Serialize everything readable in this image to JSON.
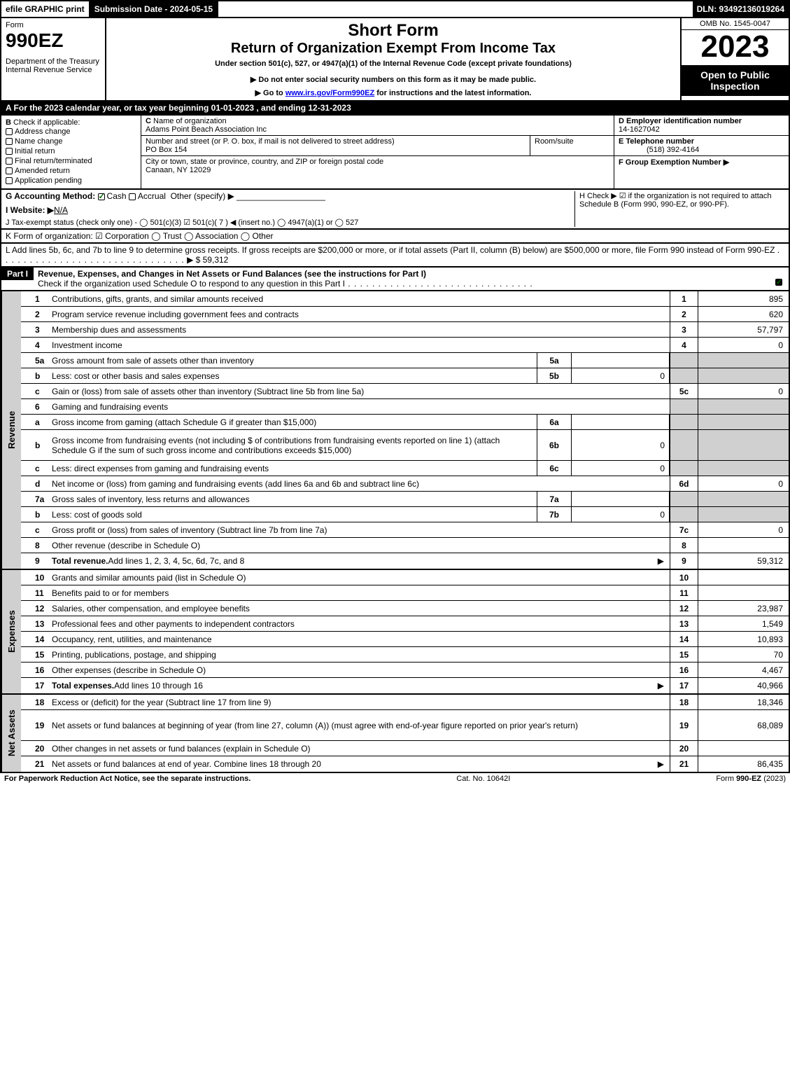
{
  "topbar": {
    "efile": "efile GRAPHIC print",
    "subdate_label": "Submission Date - 2024-05-15",
    "dln": "DLN: 93492136019264"
  },
  "header": {
    "form_label": "Form",
    "form_no": "990EZ",
    "dept1": "Department of the Treasury",
    "dept2": "Internal Revenue Service",
    "short": "Short Form",
    "title": "Return of Organization Exempt From Income Tax",
    "subtitle": "Under section 501(c), 527, or 4947(a)(1) of the Internal Revenue Code (except private foundations)",
    "warn1": "▶ Do not enter social security numbers on this form as it may be made public.",
    "warn2": "▶ Go to ",
    "warn2_link": "www.irs.gov/Form990EZ",
    "warn2_tail": " for instructions and the latest information.",
    "omb": "OMB No. 1545-0047",
    "year": "2023",
    "open": "Open to Public Inspection"
  },
  "lineA": "A  For the 2023 calendar year, or tax year beginning 01-01-2023 , and ending 12-31-2023",
  "sectionB": {
    "label": "B",
    "check_label": "Check if applicable:",
    "opts": [
      "Address change",
      "Name change",
      "Initial return",
      "Final return/terminated",
      "Amended return",
      "Application pending"
    ],
    "c_label": "C",
    "c_name_label": "Name of organization",
    "c_name": "Adams Point Beach Association Inc",
    "c_street_label": "Number and street (or P. O. box, if mail is not delivered to street address)",
    "c_room_label": "Room/suite",
    "c_street": "PO Box 154",
    "c_city_label": "City or town, state or province, country, and ZIP or foreign postal code",
    "c_city": "Canaan, NY  12029",
    "d_label": "D Employer identification number",
    "d_val": "14-1627042",
    "e_label": "E Telephone number",
    "e_val": "(518) 392-4164",
    "f_label": "F Group Exemption Number   ▶"
  },
  "lineG": {
    "label": "G Accounting Method:",
    "cash": "Cash",
    "accrual": "Accrual",
    "other": "Other (specify) ▶"
  },
  "lineH": "H   Check ▶ ☑ if the organization is not required to attach Schedule B (Form 990, 990-EZ, or 990-PF).",
  "lineI": {
    "label": "I Website: ▶",
    "val": "N/A"
  },
  "lineJ": "J Tax-exempt status (check only one) - ◯ 501(c)(3) ☑ 501(c)( 7 ) ◀ (insert no.) ◯ 4947(a)(1) or ◯ 527",
  "lineK": "K Form of organization:   ☑ Corporation  ◯ Trust  ◯ Association  ◯ Other",
  "lineL": {
    "text": "L Add lines 5b, 6c, and 7b to line 9 to determine gross receipts. If gross receipts are $200,000 or more, or if total assets (Part II, column (B) below) are $500,000 or more, file Form 990 instead of Form 990-EZ",
    "amount": "▶ $ 59,312"
  },
  "partI": {
    "label": "Part I",
    "title": "Revenue, Expenses, and Changes in Net Assets or Fund Balances (see the instructions for Part I)",
    "sub": "Check if the organization used Schedule O to respond to any question in this Part I"
  },
  "sideLabels": {
    "rev": "Revenue",
    "exp": "Expenses",
    "net": "Net Assets"
  },
  "rows": [
    {
      "n": "1",
      "d": "Contributions, gifts, grants, and similar amounts received",
      "rn": "1",
      "rv": "895"
    },
    {
      "n": "2",
      "d": "Program service revenue including government fees and contracts",
      "rn": "2",
      "rv": "620"
    },
    {
      "n": "3",
      "d": "Membership dues and assessments",
      "rn": "3",
      "rv": "57,797"
    },
    {
      "n": "4",
      "d": "Investment income",
      "rn": "4",
      "rv": "0"
    },
    {
      "n": "5a",
      "d": "Gross amount from sale of assets other than inventory",
      "sb": "5a",
      "sv": "",
      "shade": true
    },
    {
      "n": "b",
      "d": "Less: cost or other basis and sales expenses",
      "sb": "5b",
      "sv": "0",
      "shade": true
    },
    {
      "n": "c",
      "d": "Gain or (loss) from sale of assets other than inventory (Subtract line 5b from line 5a)",
      "rn": "5c",
      "rv": "0"
    },
    {
      "n": "6",
      "d": "Gaming and fundraising events",
      "shade": true
    },
    {
      "n": "a",
      "d": "Gross income from gaming (attach Schedule G if greater than $15,000)",
      "sb": "6a",
      "sv": "",
      "shade": true
    },
    {
      "n": "b",
      "d": "Gross income from fundraising events (not including $                   of contributions from fundraising events reported on line 1) (attach Schedule G if the sum of such gross income and contributions exceeds $15,000)",
      "sb": "6b",
      "sv": "0",
      "shade": true,
      "tall": true
    },
    {
      "n": "c",
      "d": "Less: direct expenses from gaming and fundraising events",
      "sb": "6c",
      "sv": "0",
      "shade": true
    },
    {
      "n": "d",
      "d": "Net income or (loss) from gaming and fundraising events (add lines 6a and 6b and subtract line 6c)",
      "rn": "6d",
      "rv": "0"
    },
    {
      "n": "7a",
      "d": "Gross sales of inventory, less returns and allowances",
      "sb": "7a",
      "sv": "",
      "shade": true
    },
    {
      "n": "b",
      "d": "Less: cost of goods sold",
      "sb": "7b",
      "sv": "0",
      "shade": true
    },
    {
      "n": "c",
      "d": "Gross profit or (loss) from sales of inventory (Subtract line 7b from line 7a)",
      "rn": "7c",
      "rv": "0"
    },
    {
      "n": "8",
      "d": "Other revenue (describe in Schedule O)",
      "rn": "8",
      "rv": ""
    },
    {
      "n": "9",
      "d": "Total revenue. Add lines 1, 2, 3, 4, 5c, 6d, 7c, and 8",
      "rn": "9",
      "rv": "59,312",
      "bold": true,
      "arrow": true
    }
  ],
  "rowsExp": [
    {
      "n": "10",
      "d": "Grants and similar amounts paid (list in Schedule O)",
      "rn": "10",
      "rv": ""
    },
    {
      "n": "11",
      "d": "Benefits paid to or for members",
      "rn": "11",
      "rv": ""
    },
    {
      "n": "12",
      "d": "Salaries, other compensation, and employee benefits",
      "rn": "12",
      "rv": "23,987"
    },
    {
      "n": "13",
      "d": "Professional fees and other payments to independent contractors",
      "rn": "13",
      "rv": "1,549"
    },
    {
      "n": "14",
      "d": "Occupancy, rent, utilities, and maintenance",
      "rn": "14",
      "rv": "10,893"
    },
    {
      "n": "15",
      "d": "Printing, publications, postage, and shipping",
      "rn": "15",
      "rv": "70"
    },
    {
      "n": "16",
      "d": "Other expenses (describe in Schedule O)",
      "rn": "16",
      "rv": "4,467"
    },
    {
      "n": "17",
      "d": "Total expenses. Add lines 10 through 16",
      "rn": "17",
      "rv": "40,966",
      "bold": true,
      "arrow": true
    }
  ],
  "rowsNet": [
    {
      "n": "18",
      "d": "Excess or (deficit) for the year (Subtract line 17 from line 9)",
      "rn": "18",
      "rv": "18,346"
    },
    {
      "n": "19",
      "d": "Net assets or fund balances at beginning of year (from line 27, column (A)) (must agree with end-of-year figure reported on prior year's return)",
      "rn": "19",
      "rv": "68,089",
      "tall": true
    },
    {
      "n": "20",
      "d": "Other changes in net assets or fund balances (explain in Schedule O)",
      "rn": "20",
      "rv": ""
    },
    {
      "n": "21",
      "d": "Net assets or fund balances at end of year. Combine lines 18 through 20",
      "rn": "21",
      "rv": "86,435",
      "arrow": true
    }
  ],
  "footer": {
    "left": "For Paperwork Reduction Act Notice, see the separate instructions.",
    "mid": "Cat. No. 10642I",
    "right_pre": "Form ",
    "right_bold": "990-EZ",
    "right_post": " (2023)"
  }
}
